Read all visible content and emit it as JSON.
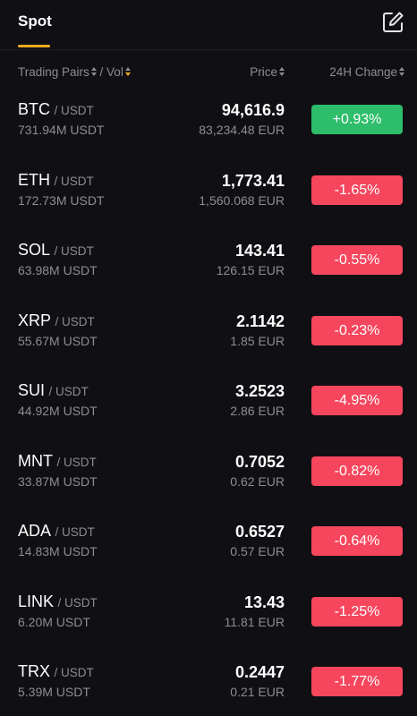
{
  "tab": {
    "label": "Spot"
  },
  "header": {
    "pairs_label": "Trading Pairs",
    "separator": " / ",
    "vol_label": "Vol",
    "price_label": "Price",
    "change_label": "24H Change"
  },
  "colors": {
    "up": "#2ebd6b",
    "down": "#f6465d",
    "accent": "#f0a81c"
  },
  "rows": [
    {
      "base": "BTC",
      "quote": "/ USDT",
      "vol": "731.94M USDT",
      "price": "94,616.9",
      "fiat": "83,234.48 EUR",
      "change": "+0.93%",
      "dir": "up"
    },
    {
      "base": "ETH",
      "quote": "/ USDT",
      "vol": "172.73M USDT",
      "price": "1,773.41",
      "fiat": "1,560.068 EUR",
      "change": "-1.65%",
      "dir": "down"
    },
    {
      "base": "SOL",
      "quote": "/ USDT",
      "vol": "63.98M USDT",
      "price": "143.41",
      "fiat": "126.15 EUR",
      "change": "-0.55%",
      "dir": "down"
    },
    {
      "base": "XRP",
      "quote": "/ USDT",
      "vol": "55.67M USDT",
      "price": "2.1142",
      "fiat": "1.85 EUR",
      "change": "-0.23%",
      "dir": "down"
    },
    {
      "base": "SUI",
      "quote": "/ USDT",
      "vol": "44.92M USDT",
      "price": "3.2523",
      "fiat": "2.86 EUR",
      "change": "-4.95%",
      "dir": "down"
    },
    {
      "base": "MNT",
      "quote": "/ USDT",
      "vol": "33.87M USDT",
      "price": "0.7052",
      "fiat": "0.62 EUR",
      "change": "-0.82%",
      "dir": "down"
    },
    {
      "base": "ADA",
      "quote": "/ USDT",
      "vol": "14.83M USDT",
      "price": "0.6527",
      "fiat": "0.57 EUR",
      "change": "-0.64%",
      "dir": "down"
    },
    {
      "base": "LINK",
      "quote": "/ USDT",
      "vol": "6.20M USDT",
      "price": "13.43",
      "fiat": "11.81 EUR",
      "change": "-1.25%",
      "dir": "down"
    },
    {
      "base": "TRX",
      "quote": "/ USDT",
      "vol": "5.39M USDT",
      "price": "0.2447",
      "fiat": "0.21 EUR",
      "change": "-1.77%",
      "dir": "down"
    }
  ]
}
